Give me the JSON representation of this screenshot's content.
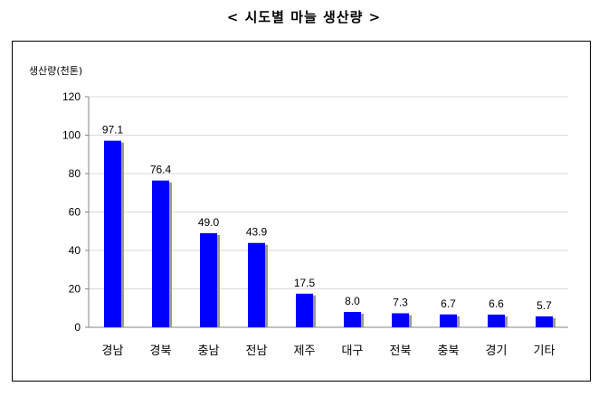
{
  "page": {
    "title": "< 시도별 마늘 생산량 >"
  },
  "chart_data": {
    "type": "bar",
    "title": "< 시도별 마늘 생산량 >",
    "ylabel": "생산량(천톤)",
    "xlabel": "",
    "ylim": [
      0,
      120
    ],
    "yticks": [
      0,
      20,
      40,
      60,
      80,
      100,
      120
    ],
    "grid": true,
    "categories": [
      "경남",
      "경북",
      "충남",
      "전남",
      "제주",
      "대구",
      "전북",
      "충북",
      "경기",
      "기타"
    ],
    "values": [
      97.1,
      76.4,
      49.0,
      43.9,
      17.5,
      8.0,
      7.3,
      6.7,
      6.6,
      5.7
    ],
    "value_labels": [
      "97.1",
      "76.4",
      "49.0",
      "43.9",
      "17.5",
      "8.0",
      "7.3",
      "6.7",
      "6.6",
      "5.7"
    ],
    "colors": {
      "bar": "#0000ff",
      "shadow": "#9a9a9a",
      "grid": "#d9d9d9",
      "axis": "#868686"
    }
  }
}
